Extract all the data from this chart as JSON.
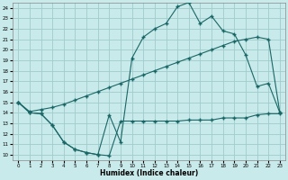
{
  "xlabel": "Humidex (Indice chaleur)",
  "bg_color": "#c8eaea",
  "grid_color": "#a0cccc",
  "line_color": "#1a6666",
  "xlim": [
    -0.5,
    23.5
  ],
  "ylim": [
    9.5,
    24.5
  ],
  "xticks": [
    0,
    1,
    2,
    3,
    4,
    5,
    6,
    7,
    8,
    9,
    10,
    11,
    12,
    13,
    14,
    15,
    16,
    17,
    18,
    19,
    20,
    21,
    22,
    23
  ],
  "yticks": [
    10,
    11,
    12,
    13,
    14,
    15,
    16,
    17,
    18,
    19,
    20,
    21,
    22,
    23,
    24
  ],
  "line1_x": [
    0,
    1,
    2,
    3,
    4,
    5,
    6,
    7,
    8,
    9,
    10,
    11,
    12,
    13,
    14,
    15,
    16,
    17,
    18,
    19,
    20,
    21,
    22,
    23
  ],
  "line1_y": [
    15,
    14,
    13.9,
    12.8,
    11.2,
    10.5,
    10.2,
    10.0,
    9.9,
    13.2,
    13.2,
    13.2,
    13.2,
    13.2,
    13.2,
    13.3,
    13.3,
    13.3,
    13.5,
    13.5,
    13.5,
    13.8,
    13.9,
    13.9
  ],
  "line2_x": [
    0,
    1,
    2,
    3,
    4,
    5,
    6,
    7,
    8,
    9,
    10,
    11,
    12,
    13,
    14,
    15,
    16,
    17,
    18,
    19,
    20,
    21,
    22,
    23
  ],
  "line2_y": [
    15.0,
    14.1,
    14.3,
    14.5,
    14.8,
    15.2,
    15.6,
    16.0,
    16.4,
    16.8,
    17.2,
    17.6,
    18.0,
    18.4,
    18.8,
    19.2,
    19.6,
    20.0,
    20.4,
    20.8,
    21.0,
    21.2,
    21.0,
    14.0
  ],
  "line3_x": [
    0,
    1,
    2,
    3,
    4,
    5,
    6,
    7,
    8,
    9,
    10,
    11,
    12,
    13,
    14,
    15,
    16,
    17,
    18,
    19,
    20,
    21,
    22,
    23
  ],
  "line3_y": [
    15,
    14,
    13.9,
    12.8,
    11.2,
    10.5,
    10.2,
    10.0,
    13.8,
    11.2,
    19.2,
    21.2,
    22.0,
    22.5,
    24.1,
    24.5,
    22.5,
    23.2,
    21.8,
    21.5,
    19.5,
    16.5,
    16.8,
    14.0
  ]
}
